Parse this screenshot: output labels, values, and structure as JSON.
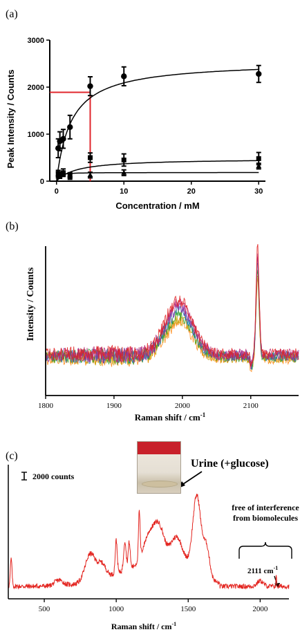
{
  "panels": {
    "a": {
      "label": "(a)"
    },
    "b": {
      "label": "(b)"
    },
    "c": {
      "label": "(c)"
    }
  },
  "colors": {
    "data_black": "#000000",
    "highlight_red": "#e0262b",
    "spectrum_red": "#e3241f",
    "spectra_b": [
      "#ff8c1a",
      "#c8a000",
      "#2ca02c",
      "#1f77b4",
      "#8b2aa0",
      "#c0327a",
      "#e02020"
    ]
  },
  "chart_data": [
    {
      "type": "scatter",
      "panel": "a",
      "xlabel": "Concentration / mM",
      "ylabel": "Peak Intensity / Counts",
      "xlim": [
        -1,
        31
      ],
      "ylim": [
        0,
        3000
      ],
      "xticks": [
        "0",
        "10",
        "20",
        "30"
      ],
      "yticks": [
        "0",
        "1000",
        "2000",
        "3000"
      ],
      "series": [
        {
          "marker": "circle",
          "x": [
            0.25,
            0.5,
            1,
            2,
            5,
            10,
            30
          ],
          "y": [
            700,
            850,
            900,
            1150,
            2020,
            2230,
            2280
          ],
          "err": [
            200,
            200,
            200,
            250,
            200,
            200,
            180
          ],
          "fit": {
            "vmax": 2550,
            "k": 2.2
          }
        },
        {
          "marker": "square",
          "x": [
            0.25,
            0.5,
            1,
            2,
            5,
            10,
            30
          ],
          "y": [
            150,
            120,
            180,
            100,
            500,
            450,
            480
          ],
          "err": [
            80,
            60,
            80,
            60,
            100,
            130,
            130
          ],
          "fit": {
            "vmax": 480,
            "k": 3.0
          }
        },
        {
          "marker": "triangle",
          "x": [
            0.25,
            0.5,
            1,
            2,
            5,
            10,
            30
          ],
          "y": [
            150,
            140,
            160,
            130,
            130,
            180,
            320
          ],
          "err": [
            50,
            50,
            50,
            50,
            60,
            60,
            60
          ],
          "fit": {
            "vmax": 185,
            "k": 0.25
          }
        }
      ],
      "annotation": {
        "x": 5,
        "y": 1890,
        "color": "red"
      }
    },
    {
      "type": "line",
      "panel": "b",
      "xlabel": "Raman shift / cm",
      "xlabel_sup": "-1",
      "ylabel": "Intensity / Counts",
      "xlim": [
        1800,
        2170
      ],
      "xticks": [
        "1800",
        "1900",
        "2000",
        "2100"
      ],
      "series_count": 7,
      "features": [
        {
          "center": 1995,
          "kind": "broad band"
        },
        {
          "center": 2110,
          "kind": "sharp peak"
        }
      ]
    },
    {
      "type": "line",
      "panel": "c",
      "xlabel": "Raman shift / cm",
      "xlabel_sup": "-1",
      "xlim": [
        250,
        2200
      ],
      "xticks": [
        "500",
        "1000",
        "1500",
        "2000"
      ],
      "scale_bar": "2000 counts",
      "inset_label": "Urine (+glucose)",
      "annotations": [
        {
          "text": "free of interference",
          "text2": "from biomolecules"
        },
        {
          "text": "2111 cm",
          "sup": "-1"
        }
      ]
    }
  ]
}
